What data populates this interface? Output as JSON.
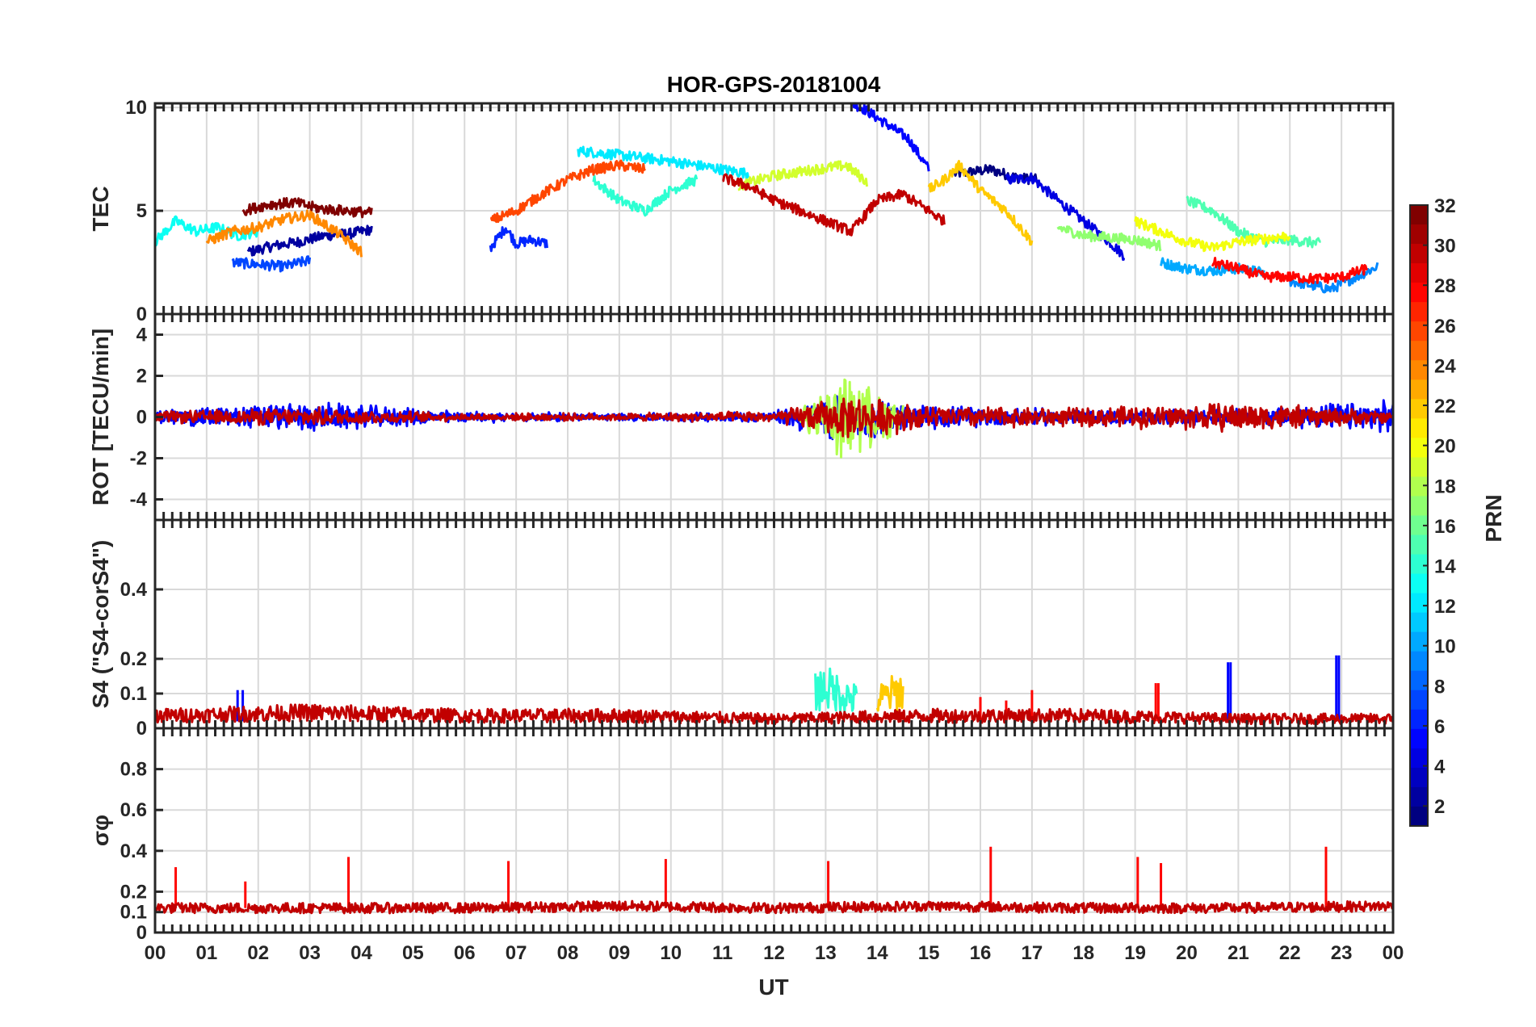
{
  "chart_data": {
    "type": "line",
    "title": "HOR-GPS-20181004",
    "xlabel": "UT",
    "x_tick_labels": [
      "00",
      "01",
      "02",
      "03",
      "04",
      "05",
      "06",
      "07",
      "08",
      "09",
      "10",
      "11",
      "12",
      "13",
      "14",
      "15",
      "16",
      "17",
      "18",
      "19",
      "20",
      "21",
      "22",
      "23",
      "00"
    ],
    "xlim": [
      0,
      24
    ],
    "grid": true,
    "colormap": "jet",
    "colorbar": {
      "label": "PRN",
      "range": [
        1,
        32
      ],
      "tick_labels": [
        "2",
        "4",
        "6",
        "8",
        "10",
        "12",
        "14",
        "16",
        "18",
        "20",
        "22",
        "24",
        "26",
        "28",
        "30",
        "32"
      ],
      "placement": "right"
    },
    "panels": [
      {
        "id": "tec",
        "ylabel": "TEC",
        "ylim": [
          0,
          10.2
        ],
        "y_tick_labels": [
          "0",
          "5",
          "10"
        ],
        "approx_series": [
          {
            "prn": 1,
            "x": [
              15.5,
              15.9,
              16.2,
              16.7,
              17.1
            ],
            "y": [
              6.8,
              6.9,
              7.0,
              6.6,
              6.5
            ]
          },
          {
            "prn": 2,
            "x": [
              1.8,
              2.3,
              2.8,
              3.3,
              3.8,
              4.2
            ],
            "y": [
              3.0,
              3.3,
              3.5,
              3.8,
              3.9,
              4.1
            ]
          },
          {
            "prn": 4,
            "x": [
              16.5,
              17.0,
              17.5,
              18.0,
              18.5,
              18.8
            ],
            "y": [
              6.5,
              6.6,
              5.5,
              4.5,
              3.5,
              2.8
            ]
          },
          {
            "prn": 5,
            "x": [
              13.5,
              13.7,
              14.0,
              14.3,
              14.6,
              15.0
            ],
            "y": [
              10.2,
              10.0,
              9.5,
              9.0,
              8.5,
              7.0
            ]
          },
          {
            "prn": 6,
            "x": [
              6.5,
              6.8,
              7.0,
              7.3,
              7.6
            ],
            "y": [
              3.2,
              4.2,
              3.4,
              3.6,
              3.4
            ]
          },
          {
            "prn": 7,
            "x": [
              1.5,
              2.0,
              2.5,
              3.0
            ],
            "y": [
              2.5,
              2.4,
              2.3,
              2.6
            ]
          },
          {
            "prn": 9,
            "x": [
              22.0,
              22.4,
              22.8,
              23.2,
              23.7
            ],
            "y": [
              1.6,
              1.4,
              1.2,
              1.7,
              2.3
            ]
          },
          {
            "prn": 10,
            "x": [
              19.5,
              20.0,
              20.5,
              21.0,
              21.5
            ],
            "y": [
              2.5,
              2.2,
              2.1,
              2.2,
              2.0
            ]
          },
          {
            "prn": 12,
            "x": [
              8.2,
              9.0,
              10.0,
              11.0,
              11.5
            ],
            "y": [
              7.9,
              7.7,
              7.4,
              7.0,
              6.8
            ]
          },
          {
            "prn": 13,
            "x": [
              0.0,
              0.4,
              0.8,
              1.2,
              1.6,
              2.0
            ],
            "y": [
              3.5,
              4.5,
              4.0,
              4.2,
              3.8,
              4.0
            ]
          },
          {
            "prn": 14,
            "x": [
              8.5,
              9.0,
              9.5,
              10.0,
              10.5
            ],
            "y": [
              6.5,
              5.5,
              5.0,
              6.0,
              6.5
            ]
          },
          {
            "prn": 15,
            "x": [
              20.0,
              20.5,
              21.0,
              21.5,
              22.0,
              22.6
            ],
            "y": [
              5.5,
              5.0,
              4.0,
              3.5,
              3.6,
              3.4
            ]
          },
          {
            "prn": 17,
            "x": [
              17.5,
              18.0,
              18.5,
              19.0,
              19.5
            ],
            "y": [
              4.2,
              3.8,
              3.7,
              3.6,
              3.3
            ]
          },
          {
            "prn": 19,
            "x": [
              11.3,
              12.0,
              12.8,
              13.4,
              13.8
            ],
            "y": [
              6.2,
              6.7,
              7.0,
              7.2,
              6.4
            ]
          },
          {
            "prn": 20,
            "x": [
              19.0,
              19.5,
              20.0,
              20.5,
              21.0,
              22.0
            ],
            "y": [
              4.5,
              4.0,
              3.5,
              3.2,
              3.5,
              3.8
            ]
          },
          {
            "prn": 22,
            "x": [
              15.0,
              15.3,
              15.6,
              16.0,
              16.5,
              17.0
            ],
            "y": [
              6.0,
              6.5,
              7.2,
              6.0,
              5.0,
              3.5
            ]
          },
          {
            "prn": 24,
            "x": [
              1.0,
              1.5,
              2.0,
              2.5,
              3.0,
              3.5,
              4.0
            ],
            "y": [
              3.5,
              4.0,
              4.2,
              4.6,
              4.8,
              4.0,
              3.0
            ]
          },
          {
            "prn": 26,
            "x": [
              6.5,
              7.0,
              7.5,
              8.0,
              8.5,
              9.0,
              9.5
            ],
            "y": [
              4.5,
              5.0,
              5.8,
              6.5,
              7.0,
              7.2,
              7.0
            ]
          },
          {
            "prn": 28,
            "x": [
              20.5,
              21.0,
              21.5,
              22.0,
              22.5,
              23.0,
              23.5
            ],
            "y": [
              2.5,
              2.2,
              1.8,
              1.8,
              1.7,
              1.8,
              2.2
            ]
          },
          {
            "prn": 30,
            "x": [
              11.0,
              11.5,
              12.0,
              12.5,
              13.0,
              13.5,
              14.0,
              14.5,
              15.0,
              15.3
            ],
            "y": [
              6.6,
              6.2,
              5.5,
              5.0,
              4.5,
              4.0,
              5.5,
              5.8,
              5.0,
              4.5
            ]
          },
          {
            "prn": 32,
            "x": [
              1.7,
              2.2,
              2.7,
              3.2,
              3.7,
              4.2
            ],
            "y": [
              5.0,
              5.3,
              5.4,
              5.1,
              5.0,
              4.9
            ]
          }
        ]
      },
      {
        "id": "rot",
        "ylabel": "ROT [TECU/min]",
        "ylim": [
          -5,
          5
        ],
        "y_tick_labels": [
          "-4",
          "-2",
          "0",
          "2",
          "4"
        ],
        "approx_series": [
          {
            "prn": 5,
            "x": [
              0,
              3,
              6,
              9,
              12,
              13,
              14,
              15,
              18,
              21,
              24
            ],
            "y_abs_max": [
              0.4,
              0.8,
              0.3,
              0.2,
              0.3,
              1.2,
              1.0,
              0.6,
              0.4,
              0.4,
              0.9
            ]
          },
          {
            "prn": 18,
            "x": [
              12.5,
              13.0,
              13.4,
              13.8,
              14.5
            ],
            "y_abs_max": [
              0.6,
              1.5,
              2.4,
              1.7,
              0.8
            ]
          },
          {
            "prn": 30,
            "x": [
              0,
              3,
              6,
              9,
              12,
              13.5,
              15,
              18,
              21,
              24
            ],
            "y_abs_max": [
              0.3,
              0.5,
              0.2,
              0.2,
              0.3,
              1.2,
              0.6,
              0.5,
              0.8,
              0.3
            ]
          }
        ]
      },
      {
        "id": "s4",
        "ylabel": "S4 (\"S4-corS4\")",
        "ylim": [
          0,
          0.6
        ],
        "y_tick_labels": [
          "0",
          "0.1",
          "0.2",
          "0.4"
        ],
        "approx_series": [
          {
            "prn": 5,
            "x": [
              1.6,
              1.7,
              20.8,
              20.85,
              22.9,
              22.95
            ],
            "y": [
              0.11,
              0.11,
              0.19,
              0.19,
              0.21,
              0.21
            ]
          },
          {
            "prn": 14,
            "x": [
              12.8,
              13.0,
              13.3,
              13.6
            ],
            "y": [
              0.12,
              0.13,
              0.11,
              0.09
            ]
          },
          {
            "prn": 22,
            "x": [
              14.0,
              14.3,
              14.5
            ],
            "y": [
              0.09,
              0.11,
              0.12
            ]
          },
          {
            "prn": 28,
            "x": [
              16.0,
              16.5,
              17.0,
              19.4,
              19.45
            ],
            "y": [
              0.09,
              0.08,
              0.11,
              0.13,
              0.13
            ]
          },
          {
            "prn": 30,
            "x": [
              0,
              3,
              6,
              9,
              12,
              15,
              18,
              21,
              24
            ],
            "y": [
              0.04,
              0.05,
              0.04,
              0.04,
              0.03,
              0.04,
              0.04,
              0.03,
              0.03
            ]
          }
        ]
      },
      {
        "id": "sigma_phi",
        "ylabel": "σφ",
        "ylim": [
          0,
          1
        ],
        "y_tick_labels": [
          "0",
          "0.1",
          "0.2",
          "0.4",
          "0.6",
          "0.8"
        ],
        "approx_series": [
          {
            "prn": 28,
            "x": [
              0.4,
              1.75,
              3.75,
              6.85,
              9.9,
              13.05,
              16.2,
              19.05,
              19.5,
              22.7
            ],
            "y": [
              0.32,
              0.25,
              0.37,
              0.35,
              0.36,
              0.35,
              0.42,
              0.37,
              0.34,
              0.42
            ]
          },
          {
            "prn": 30,
            "x": [
              0,
              3,
              6,
              9,
              12,
              15,
              18,
              21,
              24
            ],
            "y": [
              0.12,
              0.12,
              0.12,
              0.13,
              0.12,
              0.13,
              0.12,
              0.12,
              0.13
            ]
          }
        ]
      }
    ]
  }
}
